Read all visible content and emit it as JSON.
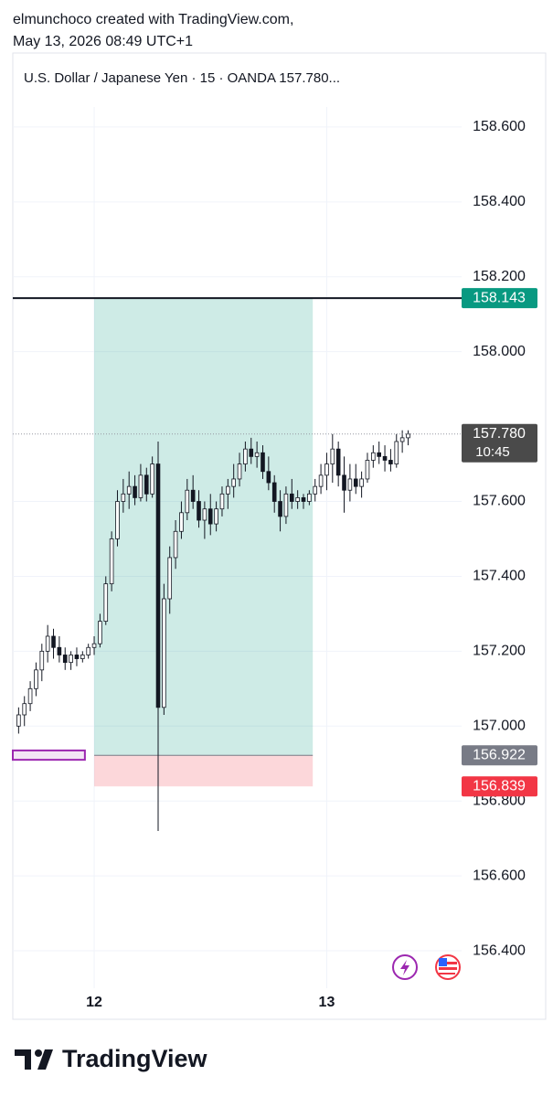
{
  "header": {
    "line1": "elmunchoco created with TradingView.com,",
    "line2": "May 13, 2026 08:49 UTC+1"
  },
  "footer": {
    "brand": "TradingView"
  },
  "chart_data": {
    "type": "candlestick",
    "title": "U.S. Dollar / Japanese Yen · 15 · OANDA  157.780...",
    "x": [
      11.675,
      11.7,
      11.725,
      11.75,
      11.775,
      11.8,
      11.825,
      11.85,
      11.875,
      11.9,
      11.925,
      11.95,
      11.975,
      12.0,
      12.025,
      12.05,
      12.075,
      12.1,
      12.125,
      12.15,
      12.175,
      12.2,
      12.225,
      12.25,
      12.275,
      12.3,
      12.325,
      12.35,
      12.375,
      12.4,
      12.425,
      12.45,
      12.475,
      12.5,
      12.525,
      12.55,
      12.575,
      12.6,
      12.625,
      12.65,
      12.675,
      12.7,
      12.725,
      12.75,
      12.775,
      12.8,
      12.825,
      12.85,
      12.875,
      12.9,
      12.925,
      12.95,
      12.975,
      13.0,
      13.025,
      13.05,
      13.075,
      13.1,
      13.125,
      13.15,
      13.175,
      13.2,
      13.225,
      13.25,
      13.275,
      13.3,
      13.325,
      13.35
    ],
    "open": [
      157.0,
      157.03,
      157.06,
      157.1,
      157.15,
      157.2,
      157.24,
      157.21,
      157.19,
      157.17,
      157.19,
      157.18,
      157.19,
      157.21,
      157.22,
      157.28,
      157.38,
      157.5,
      157.6,
      157.62,
      157.64,
      157.61,
      157.67,
      157.62,
      157.7,
      157.05,
      157.34,
      157.45,
      157.52,
      157.57,
      157.63,
      157.6,
      157.55,
      157.58,
      157.54,
      157.58,
      157.62,
      157.64,
      157.66,
      157.7,
      157.74,
      157.72,
      157.73,
      157.68,
      157.65,
      157.6,
      157.56,
      157.62,
      157.6,
      157.61,
      157.6,
      157.62,
      157.64,
      157.67,
      157.7,
      157.74,
      157.67,
      157.63,
      157.66,
      157.64,
      157.66,
      157.71,
      157.73,
      157.72,
      157.71,
      157.7,
      157.76,
      157.77
    ],
    "high": [
      157.05,
      157.08,
      157.12,
      157.17,
      157.22,
      157.27,
      157.26,
      157.24,
      157.21,
      157.2,
      157.21,
      157.2,
      157.22,
      157.24,
      157.3,
      157.4,
      157.52,
      157.63,
      157.66,
      157.68,
      157.67,
      157.7,
      157.69,
      157.72,
      157.76,
      157.38,
      157.48,
      157.55,
      157.6,
      157.66,
      157.67,
      157.63,
      157.6,
      157.62,
      157.6,
      157.64,
      157.66,
      157.7,
      157.73,
      157.76,
      157.77,
      157.76,
      157.75,
      157.72,
      157.67,
      157.63,
      157.64,
      157.66,
      157.63,
      157.62,
      157.63,
      157.66,
      157.7,
      157.73,
      157.78,
      157.76,
      157.72,
      157.7,
      157.7,
      157.68,
      157.73,
      157.75,
      157.76,
      157.75,
      157.74,
      157.78,
      157.79,
      157.79
    ],
    "low": [
      156.98,
      157.0,
      157.04,
      157.08,
      157.12,
      157.17,
      157.18,
      157.17,
      157.15,
      157.15,
      157.16,
      157.17,
      157.18,
      157.19,
      157.21,
      157.27,
      157.36,
      157.48,
      157.57,
      157.58,
      157.59,
      157.6,
      157.6,
      157.61,
      156.72,
      157.03,
      157.3,
      157.42,
      157.5,
      157.55,
      157.58,
      157.53,
      157.5,
      157.51,
      157.52,
      157.56,
      157.58,
      157.61,
      157.64,
      157.68,
      157.7,
      157.69,
      157.66,
      157.63,
      157.57,
      157.52,
      157.54,
      157.58,
      157.58,
      157.58,
      157.59,
      157.6,
      157.62,
      157.63,
      157.65,
      157.64,
      157.57,
      157.6,
      157.62,
      157.61,
      157.65,
      157.69,
      157.7,
      157.68,
      157.68,
      157.69,
      157.73,
      157.75
    ],
    "close": [
      157.03,
      157.06,
      157.1,
      157.15,
      157.2,
      157.24,
      157.21,
      157.19,
      157.17,
      157.19,
      157.18,
      157.19,
      157.21,
      157.22,
      157.28,
      157.38,
      157.5,
      157.6,
      157.62,
      157.64,
      157.61,
      157.67,
      157.62,
      157.7,
      157.05,
      157.34,
      157.45,
      157.52,
      157.57,
      157.63,
      157.6,
      157.55,
      157.58,
      157.54,
      157.58,
      157.62,
      157.64,
      157.66,
      157.7,
      157.74,
      157.72,
      157.73,
      157.68,
      157.65,
      157.6,
      157.56,
      157.62,
      157.6,
      157.61,
      157.6,
      157.62,
      157.64,
      157.67,
      157.7,
      157.74,
      157.67,
      157.63,
      157.66,
      157.64,
      157.66,
      157.71,
      157.73,
      157.72,
      157.71,
      157.7,
      157.76,
      157.77,
      157.78
    ],
    "up_color": "#ffffff",
    "down_color": "#131722",
    "wick_color": "#131722",
    "xlim": [
      11.65,
      13.58
    ],
    "xticks": [
      12,
      13
    ],
    "ylim": [
      156.3,
      158.8
    ],
    "yticks": [
      {
        "value": 156.4,
        "label": "156.400"
      },
      {
        "value": 156.6,
        "label": "156.600"
      },
      {
        "value": 156.8,
        "label": "156.800"
      },
      {
        "value": 157.0,
        "label": "157.000"
      },
      {
        "value": 157.2,
        "label": "157.200"
      },
      {
        "value": 157.4,
        "label": "157.400"
      },
      {
        "value": 157.6,
        "label": "157.600"
      },
      {
        "value": 158.0,
        "label": "158.000"
      },
      {
        "value": 158.2,
        "label": "158.200"
      },
      {
        "value": 158.4,
        "label": "158.400"
      },
      {
        "value": 158.6,
        "label": "158.600"
      }
    ],
    "grid": true,
    "last_price": {
      "value": 157.78,
      "label": "157.780",
      "countdown": "10:45",
      "color": "#4a4a4a"
    },
    "position": {
      "x_start": 12.0,
      "x_end": 12.94,
      "target": 158.143,
      "entry": 156.922,
      "stop": 156.839,
      "target_color": "#089981",
      "entry_color": "#787b86",
      "stop_color": "#f23645"
    },
    "horizontal_line": {
      "value": 158.143,
      "color": "#131722"
    },
    "rectangle": {
      "x": [
        11.65,
        11.96
      ],
      "y": [
        156.91,
        156.935
      ],
      "color": "#9c27b0"
    }
  }
}
